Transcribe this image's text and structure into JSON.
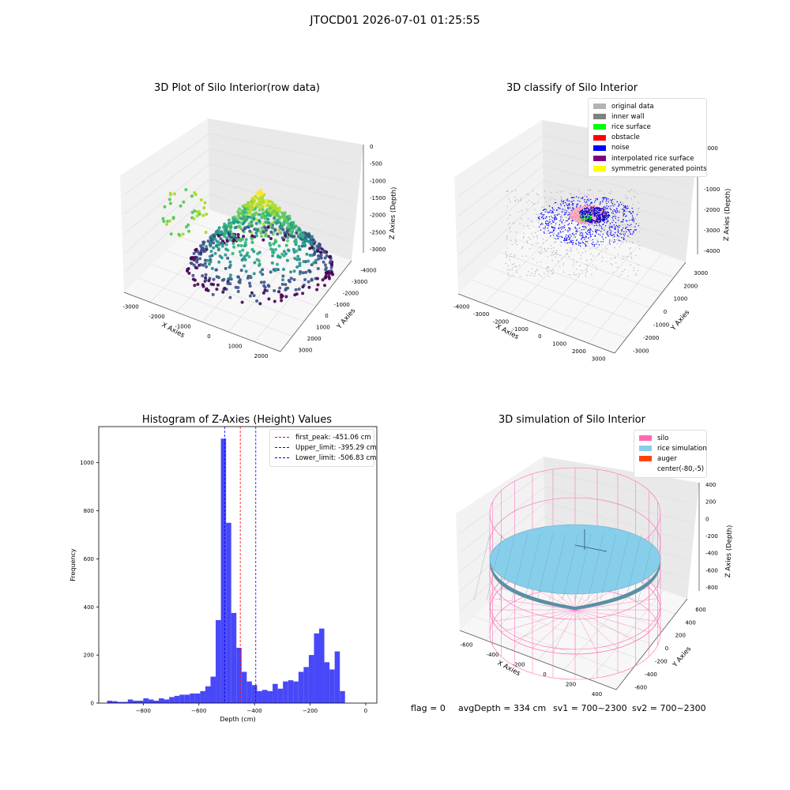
{
  "suptitle": "JTOCD01 2026-07-01 01:25:55",
  "chart_data": [
    {
      "type": "scatter",
      "title": "3D Plot of Silo Interior(row data)",
      "xlabel": "X Axies",
      "ylabel": "Y Axies",
      "zlabel": "Z Axies (Depth)",
      "x_ticks": [
        "-3000",
        "-2000",
        "-1000",
        "0",
        "1000",
        "2000"
      ],
      "y_ticks": [
        "-4000",
        "-3000",
        "-2000",
        "-1000",
        "0",
        "1000",
        "2000",
        "3000"
      ],
      "z_ticks": [
        "-3000",
        "-2500",
        "-2000",
        "-1500",
        "-1000",
        "-500",
        "0"
      ],
      "colormap": "viridis",
      "description_series": "point cloud, depth-colored; dense yellow dome near center top"
    },
    {
      "type": "scatter",
      "title": "3D classify of Silo Interior",
      "xlabel": "X Axies",
      "ylabel": "Y Axies",
      "zlabel": "Z Axies (Depth)",
      "x_ticks": [
        "-4000",
        "-3000",
        "-2000",
        "-1000",
        "0",
        "1000",
        "2000",
        "3000"
      ],
      "y_ticks": [
        "-3000",
        "-2000",
        "-1000",
        "0",
        "1000",
        "2000",
        "3000"
      ],
      "z_ticks": [
        "-4000",
        "-3000",
        "-2000",
        "-1000",
        "0",
        "1000",
        "2000",
        "3000"
      ],
      "legend": [
        {
          "label": "original data",
          "color": "#b3b3b3"
        },
        {
          "label": "inner wall",
          "color": "#808080"
        },
        {
          "label": "rice surface",
          "color": "#00ff00"
        },
        {
          "label": "obstacle",
          "color": "#ff0000"
        },
        {
          "label": "noise",
          "color": "#0000ff"
        },
        {
          "label": "interpolated rice surface",
          "color": "#800080"
        },
        {
          "label": "symmetric generated points",
          "color": "#ffff00"
        }
      ],
      "legend_position": "top-right"
    },
    {
      "type": "bar",
      "title": "Histogram of Z-Axies (Height) Values",
      "xlabel": "Depth (cm)",
      "ylabel": "Frequency",
      "xlim": [
        -960,
        40
      ],
      "ylim": [
        0,
        1150
      ],
      "x_ticks": [
        -800,
        -600,
        -400,
        -200,
        0
      ],
      "y_ticks": [
        0,
        200,
        400,
        600,
        800,
        1000
      ],
      "bin_start": -930,
      "bin_width": 18.6,
      "values": [
        10,
        8,
        5,
        5,
        15,
        10,
        10,
        20,
        15,
        10,
        20,
        15,
        25,
        30,
        35,
        35,
        40,
        40,
        50,
        70,
        110,
        345,
        1100,
        750,
        375,
        230,
        130,
        90,
        75,
        50,
        55,
        50,
        80,
        60,
        90,
        95,
        90,
        130,
        150,
        200,
        290,
        310,
        170,
        140,
        215,
        50
      ],
      "bar_color": "#4848f8",
      "vlines": [
        {
          "label": "first_peak: -451.06 cm",
          "x": -451.06,
          "color": "#ff0000"
        },
        {
          "label": "Upper_limit: -395.29 cm",
          "x": -395.29,
          "color": "#0000ff"
        },
        {
          "label": "Lower_limit: -506.83 cm",
          "x": -506.83,
          "color": "#0000ff"
        }
      ],
      "legend_position": "top-right"
    },
    {
      "type": "surface",
      "title": "3D simulation of Silo Interior",
      "xlabel": "X Axies",
      "ylabel": "Y Axies",
      "zlabel": "Z Axies (Depth)",
      "x_ticks": [
        "-600",
        "-400",
        "-200",
        "0",
        "200",
        "400"
      ],
      "y_ticks": [
        "-600",
        "-400",
        "-200",
        "0",
        "200",
        "400",
        "600"
      ],
      "z_ticks": [
        "-800",
        "-600",
        "-400",
        "-200",
        "0",
        "200",
        "400"
      ],
      "legend": [
        {
          "label": "silo",
          "color": "#ff69b4"
        },
        {
          "label": "rice simulation",
          "color": "#87ceeb"
        },
        {
          "label": "auger",
          "color": "#ff4500"
        },
        {
          "label": "center(-80,-5)",
          "color": ""
        }
      ],
      "legend_position": "top-right"
    }
  ],
  "status": {
    "flag": "flag = 0",
    "avg_depth": "avgDepth = 334 cm",
    "sv1": "sv1 = 700~2300",
    "sv2": "sv2 = 700~2300"
  }
}
